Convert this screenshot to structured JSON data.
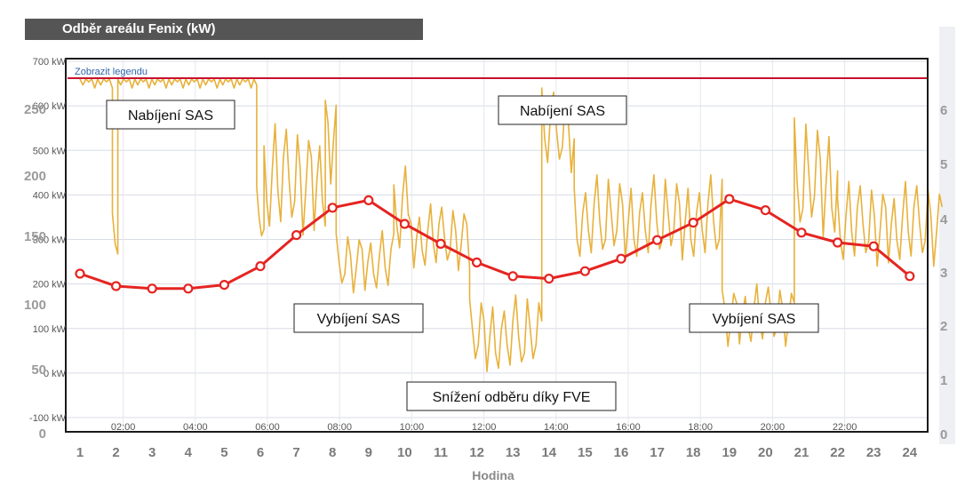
{
  "header": {
    "title": "Odběr areálu Fenix (kW)"
  },
  "legend_toggle": {
    "label": "Zobrazit legendu"
  },
  "chart_data": {
    "type": "line",
    "title": "Odběr areálu Fenix (kW)",
    "xlabel": "Hodina",
    "colors": {
      "load": "#e8b13b",
      "profile": "#e52421",
      "limit": "#c8102e",
      "frame": "#1a1a1a"
    },
    "axes": {
      "left_inner": {
        "ticks": [
          "700 kW",
          "600 kW",
          "500 kW",
          "400 kW",
          "300 kW",
          "200 kW",
          "100 kW",
          "0 kW",
          "-100 kW"
        ],
        "range": [
          -100,
          700
        ]
      },
      "left_outer": {
        "ticks": [
          "250",
          "200",
          "150",
          "100",
          "50",
          "0"
        ],
        "range": [
          0,
          250
        ]
      },
      "right": {
        "ticks": [
          "6",
          "5",
          "4",
          "3",
          "2",
          "1",
          "0"
        ],
        "range": [
          0,
          6
        ]
      },
      "time_ticks": [
        "02:00",
        "04:00",
        "06:00",
        "08:00",
        "10:00",
        "12:00",
        "14:00",
        "16:00",
        "18:00",
        "20:00",
        "22:00"
      ],
      "hour_ticks": [
        "1",
        "2",
        "3",
        "4",
        "5",
        "6",
        "7",
        "8",
        "9",
        "10",
        "11",
        "12",
        "13",
        "14",
        "15",
        "16",
        "17",
        "18",
        "19",
        "20",
        "21",
        "22",
        "23",
        "24"
      ]
    },
    "limit_line": {
      "value": 660
    },
    "series": [
      {
        "values": [
          130,
          120,
          118,
          118,
          121,
          136,
          161,
          183,
          189,
          170,
          154,
          139,
          128,
          126,
          132,
          142,
          157,
          171,
          190,
          181,
          163,
          155,
          152,
          128
        ]
      }
    ],
    "load_segments": [
      {
        "start": 0.0,
        "end": 0.9,
        "low": 640,
        "high": 660
      },
      {
        "start": 0.9,
        "end": 1.05,
        "low": 260,
        "high": 380
      },
      {
        "start": 1.05,
        "end": 4.9,
        "low": 640,
        "high": 660
      },
      {
        "start": 4.9,
        "end": 5.1,
        "low": 290,
        "high": 420
      },
      {
        "start": 5.1,
        "end": 6.8,
        "low": 310,
        "high": 560
      },
      {
        "start": 6.8,
        "end": 7.1,
        "low": 420,
        "high": 640
      },
      {
        "start": 7.1,
        "end": 8.7,
        "low": 180,
        "high": 320
      },
      {
        "start": 8.7,
        "end": 9.1,
        "low": 260,
        "high": 470
      },
      {
        "start": 9.1,
        "end": 10.8,
        "low": 230,
        "high": 380
      },
      {
        "start": 10.8,
        "end": 12.8,
        "low": 0,
        "high": 180
      },
      {
        "start": 12.8,
        "end": 13.7,
        "low": 450,
        "high": 640
      },
      {
        "start": 13.7,
        "end": 17.8,
        "low": 250,
        "high": 450
      },
      {
        "start": 17.8,
        "end": 19.8,
        "low": 60,
        "high": 200
      },
      {
        "start": 19.8,
        "end": 21.0,
        "low": 300,
        "high": 580
      },
      {
        "start": 21.0,
        "end": 23.9,
        "low": 240,
        "high": 430
      }
    ],
    "annotations": [
      {
        "text": "Nabíjení SAS"
      },
      {
        "text": "Nabíjení SAS"
      },
      {
        "text": "Vybíjení SAS"
      },
      {
        "text": "Vybíjení SAS"
      },
      {
        "text": "Snížení odběru díky FVE"
      }
    ]
  }
}
